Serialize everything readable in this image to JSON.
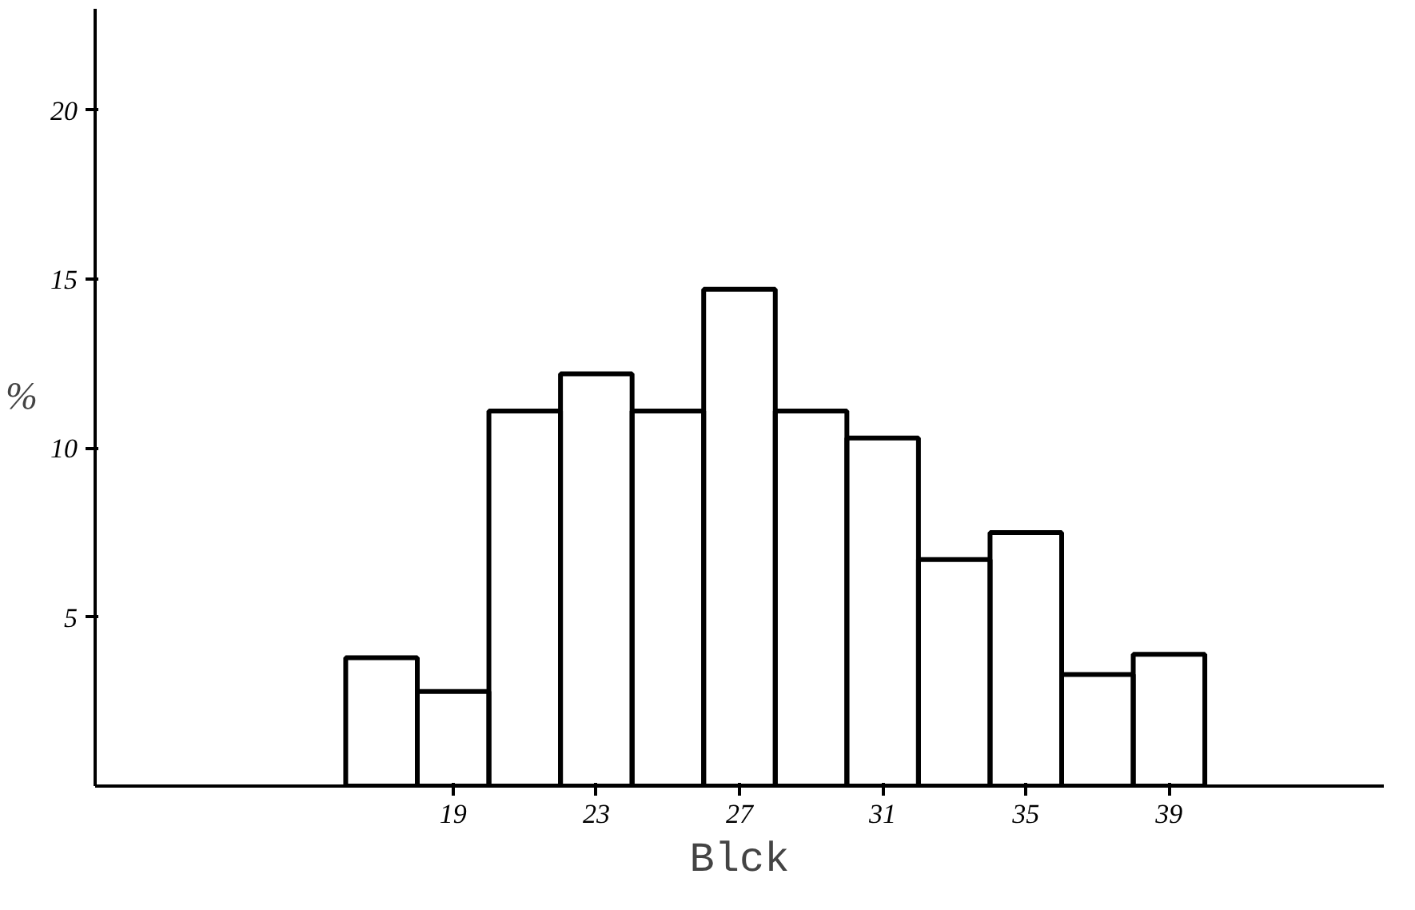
{
  "chart_data": {
    "type": "histogram",
    "xlabel": "Blck",
    "ylabel": "%",
    "bins": [
      16,
      18,
      20,
      22,
      24,
      26,
      28,
      30,
      32,
      34,
      36,
      38,
      40
    ],
    "values": [
      3.8,
      2.8,
      11.1,
      12.2,
      11.1,
      14.7,
      11.1,
      10.3,
      6.7,
      7.5,
      3.3,
      3.9
    ],
    "color": "#000000",
    "xlim": [
      9,
      45
    ],
    "ylim": [
      0,
      23
    ],
    "xticks": [
      19,
      23,
      27,
      31,
      35,
      39
    ],
    "yticks": [
      5,
      10,
      15,
      20
    ]
  }
}
